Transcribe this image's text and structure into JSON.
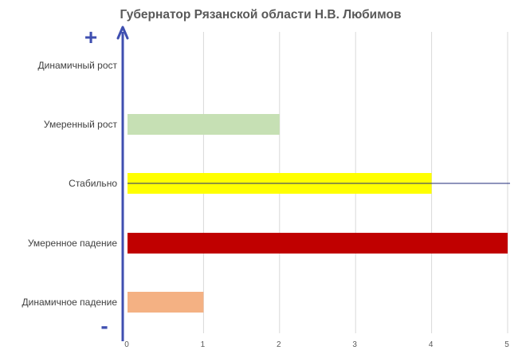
{
  "chart_data": {
    "type": "bar",
    "orientation": "horizontal",
    "title": "Губернатор Рязанской области Н.В. Любимов",
    "categories": [
      "Динамичный рост",
      "Умеренный рост",
      "Стабильно",
      "Умеренное падение",
      "Динамичное падение"
    ],
    "values": [
      0,
      2,
      4,
      5,
      1
    ],
    "colors": [
      "#c6e0b4",
      "#c6e0b4",
      "#ffff00",
      "#c00000",
      "#f4b183"
    ],
    "xlim": [
      0,
      5
    ],
    "x_ticks": [
      "0",
      "1",
      "2",
      "3",
      "4",
      "5"
    ],
    "grid": "vertical",
    "axis_color": "#3f4fb0",
    "stable_line_color": "#1f2a7a",
    "axis_top_sign": "+",
    "axis_bottom_sign": "-"
  }
}
